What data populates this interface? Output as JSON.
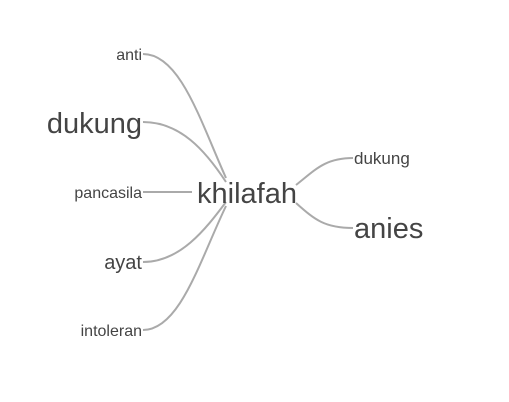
{
  "word_tree": {
    "root": "khilafah",
    "left_branches": [
      {
        "word": "anti",
        "weight": 1
      },
      {
        "word": "dukung",
        "weight": 3
      },
      {
        "word": "pancasila",
        "weight": 1
      },
      {
        "word": "ayat",
        "weight": 2
      },
      {
        "word": "intoleran",
        "weight": 1
      }
    ],
    "right_branches": [
      {
        "word": "dukung",
        "weight": 1
      },
      {
        "word": "anies",
        "weight": 3
      }
    ],
    "colors": {
      "text": "#444444",
      "link": "#aaaaaa"
    }
  }
}
